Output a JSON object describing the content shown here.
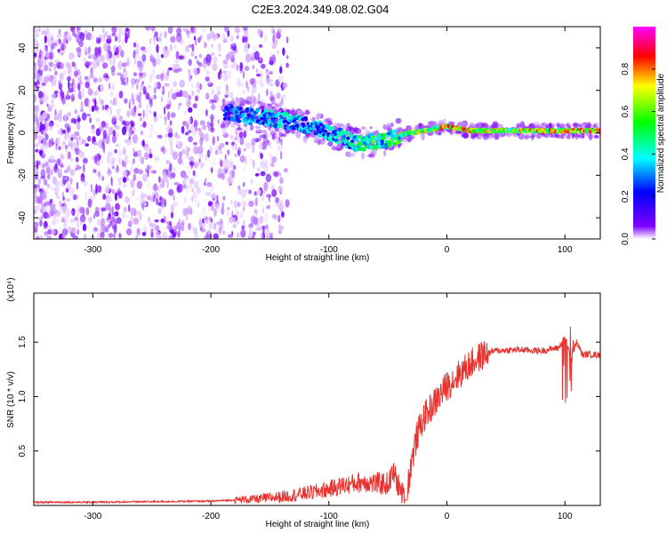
{
  "figure_title": "C2E3.2024.349.08.02.G04",
  "chart_data": [
    {
      "type": "heatmap",
      "title": "",
      "xlabel": "Height of straight line (km)",
      "ylabel": "Frequency (Hz)",
      "xlim": [
        -350,
        130
      ],
      "ylim": [
        -50,
        50
      ],
      "xticks": [
        -300,
        -200,
        -100,
        0,
        100
      ],
      "xtick_labels": [
        "-300",
        "-200",
        "-100",
        "0",
        "100"
      ],
      "yticks": [
        -40,
        -20,
        0,
        20,
        40
      ],
      "ytick_labels": [
        "-40",
        "-20",
        "0",
        "20",
        "40"
      ],
      "grid": false,
      "colorbar": {
        "label": "Normalized spectral amplitude",
        "range": [
          0,
          1
        ],
        "ticks": [
          0.0,
          0.2,
          0.4,
          0.6,
          0.8
        ],
        "tick_labels": [
          "0.0",
          "0.2",
          "0.4",
          "0.6",
          "0.8"
        ],
        "colormap": [
          "#ffffff",
          "#7f00ff",
          "#0000ff",
          "#00ffff",
          "#00ff00",
          "#ffff00",
          "#ff0000",
          "#ff00ff"
        ]
      },
      "ridge": {
        "x": [
          -185,
          -170,
          -150,
          -130,
          -110,
          -90,
          -75,
          -60,
          -50,
          -40,
          -30,
          -20,
          -10,
          0,
          20,
          50,
          80,
          110,
          130
        ],
        "frequency_hz": [
          10,
          8,
          7,
          5,
          2,
          -2,
          -5,
          -4,
          -3,
          -1,
          0,
          1,
          2,
          3,
          1,
          1,
          1,
          1,
          1
        ],
        "amplitude": [
          0.35,
          0.4,
          0.45,
          0.45,
          0.42,
          0.45,
          0.5,
          0.6,
          0.55,
          0.6,
          0.65,
          0.75,
          0.7,
          0.85,
          0.8,
          0.75,
          0.8,
          0.85,
          0.9
        ]
      }
    },
    {
      "type": "line",
      "title": "",
      "xlabel": "Height of straight line (km)",
      "ylabel": "SNR (10 * v/v)",
      "y_multiplier_label": "(x10⁴)",
      "xlim": [
        -350,
        130
      ],
      "ylim": [
        0,
        1.95
      ],
      "xticks": [
        -300,
        -200,
        -100,
        0,
        100
      ],
      "xtick_labels": [
        "-300",
        "-200",
        "-100",
        "0",
        "100"
      ],
      "yticks": [
        0.5,
        1.0,
        1.5
      ],
      "ytick_labels": [
        "0.5",
        "1.0",
        "1.5"
      ],
      "grid": false,
      "series": [
        {
          "color": "#e8322e",
          "x": [
            -350,
            -300,
            -250,
            -200,
            -180,
            -160,
            -140,
            -120,
            -100,
            -90,
            -80,
            -70,
            -60,
            -50,
            -45,
            -40,
            -35,
            -30,
            -25,
            -20,
            -10,
            0,
            10,
            20,
            30,
            40,
            60,
            80,
            95,
            100,
            105,
            110,
            115,
            120,
            130
          ],
          "y": [
            0.03,
            0.03,
            0.035,
            0.04,
            0.05,
            0.06,
            0.08,
            0.11,
            0.15,
            0.18,
            0.2,
            0.22,
            0.2,
            0.2,
            0.3,
            0.15,
            0.05,
            0.4,
            0.65,
            0.8,
            0.95,
            1.1,
            1.2,
            1.3,
            1.38,
            1.42,
            1.43,
            1.42,
            1.45,
            1.55,
            1.35,
            1.5,
            1.38,
            1.39,
            1.38
          ]
        }
      ]
    }
  ]
}
